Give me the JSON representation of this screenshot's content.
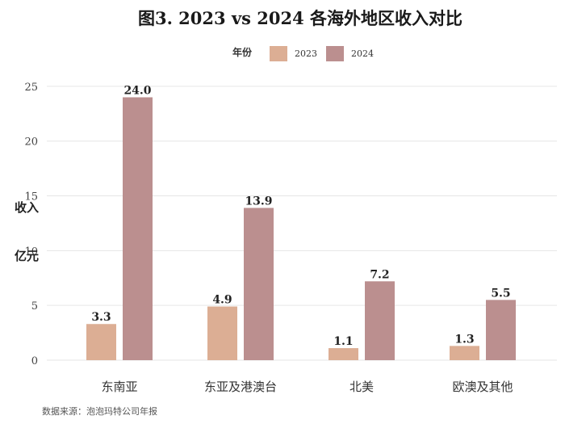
{
  "chart_data": {
    "type": "bar",
    "title": "图3. 2023 vs 2024 各海外地区收入对比",
    "legend_title": "年份",
    "legend_position": "top",
    "categories": [
      "东南亚",
      "东亚及港澳台",
      "北美",
      "欧澳及其他"
    ],
    "series": [
      {
        "name": "2023",
        "color": "#dcae94",
        "values": [
          3.3,
          4.9,
          1.1,
          1.3
        ],
        "labels": [
          "3.3",
          "4.9",
          "1.1",
          "1.3"
        ]
      },
      {
        "name": "2024",
        "color": "#bb8f8f",
        "values": [
          24.0,
          13.9,
          7.2,
          5.5
        ],
        "labels": [
          "24.0",
          "13.9",
          "7.2",
          "5.5"
        ]
      }
    ],
    "ylabel_line1": "收入",
    "ylabel_line2": "亿元",
    "ylim": [
      0,
      26.1
    ],
    "yticks": [
      0,
      5,
      10,
      15,
      20,
      25
    ],
    "ytick_labels": [
      "0",
      "5",
      "10",
      "15",
      "20",
      "25"
    ],
    "grid": true,
    "source": "数据来源：泡泡玛特公司年报"
  }
}
